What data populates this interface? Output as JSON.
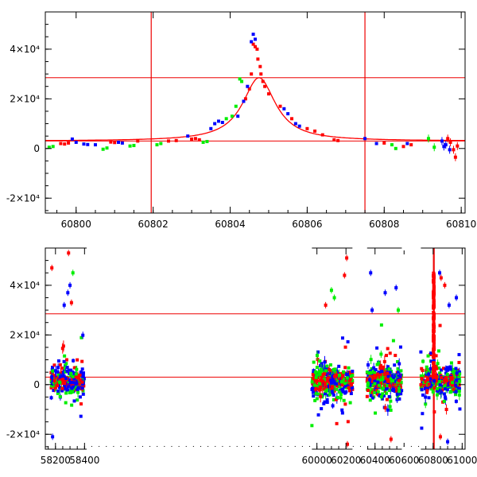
{
  "colors": {
    "red": "#ff0000",
    "green": "#00ee00",
    "blue": "#0000ff",
    "model": "#ee0000",
    "axis": "#000000"
  },
  "chart_data": [
    {
      "type": "scatter",
      "xlim": [
        60799.2,
        60810.1
      ],
      "ylim": [
        -26000,
        55000
      ],
      "xticks": [
        60800,
        60802,
        60804,
        60806,
        60808,
        60810
      ],
      "xtick_labels": [
        "60800",
        "60802",
        "60804",
        "60806",
        "60808",
        "60810"
      ],
      "yticks": [
        -20000,
        0,
        20000,
        40000
      ],
      "ytick_labels": [
        "-2×10⁴",
        "0",
        "2×10⁴",
        "4×10⁴"
      ],
      "hlines": [
        3000,
        28500
      ],
      "vlines": [
        60801.95,
        60807.5
      ],
      "model_curve": {
        "name": "",
        "color": "red",
        "baseline": 3000,
        "peak_x": 60804.75,
        "peak_y": 28500,
        "width": 0.52
      },
      "series": [
        {
          "color": "red",
          "x": [
            60799.6,
            60799.7,
            60799.8,
            60800.9,
            60801.0,
            60801.6,
            60802.4,
            60802.6,
            60803.0,
            60803.1,
            60803.2,
            60804.4,
            60804.5,
            60804.55,
            60804.6,
            60804.65,
            60804.7,
            60804.72,
            60804.78,
            60804.8,
            60804.85,
            60804.9,
            60805.0,
            60805.3,
            60805.6,
            60806.0,
            60806.2,
            60806.4,
            60806.7,
            60806.8,
            60808.0,
            60808.5,
            60808.7,
            60809.65,
            60809.72,
            60809.8,
            60809.85,
            60809.9
          ],
          "y": [
            2000,
            1800,
            2200,
            2600,
            2400,
            3000,
            3000,
            3200,
            3800,
            4000,
            3500,
            20000,
            24000,
            30000,
            42000,
            41000,
            40000,
            36000,
            33000,
            30000,
            27000,
            25000,
            22000,
            17000,
            12000,
            8000,
            7000,
            5500,
            3500,
            3200,
            2200,
            800,
            1500,
            4000,
            2500,
            -500,
            -3500,
            1000
          ]
        },
        {
          "color": "green",
          "x": [
            60799.3,
            60799.4,
            60800.7,
            60800.8,
            60801.4,
            60801.5,
            60802.1,
            60802.2,
            60803.3,
            60803.4,
            60803.9,
            60804.05,
            60804.15,
            60804.25,
            60804.3,
            60808.2,
            60808.3,
            60809.15,
            60809.3
          ],
          "y": [
            500,
            800,
            -300,
            200,
            1000,
            1200,
            1500,
            2000,
            2500,
            2800,
            12000,
            13000,
            17000,
            28000,
            27000,
            1500,
            0,
            4000,
            500
          ]
        },
        {
          "color": "blue",
          "x": [
            60799.9,
            60800.0,
            60800.2,
            60800.3,
            60800.5,
            60801.1,
            60801.2,
            60802.9,
            60803.5,
            60803.6,
            60803.7,
            60803.8,
            60804.2,
            60804.35,
            60804.45,
            60804.55,
            60804.6,
            60804.65,
            60805.4,
            60805.5,
            60805.7,
            60805.8,
            60807.5,
            60807.8,
            60808.6,
            60809.5,
            60809.55,
            60809.6,
            60809.7
          ],
          "y": [
            3800,
            2500,
            1800,
            1600,
            1500,
            2500,
            2200,
            5000,
            8000,
            10000,
            11000,
            10500,
            13000,
            19000,
            25000,
            43000,
            46000,
            44000,
            16000,
            14000,
            10000,
            9000,
            4000,
            2000,
            2000,
            3000,
            800,
            1500,
            -500
          ]
        }
      ]
    },
    {
      "type": "scatter",
      "xlim": [
        58130,
        61020
      ],
      "ylim": [
        -26000,
        55000
      ],
      "xticks": [
        58200,
        58400,
        60000,
        60200,
        60400,
        60600,
        60800,
        61000
      ],
      "xtick_labels": [
        "58200",
        "58400",
        "60000",
        "60200",
        "60400",
        "60600",
        "60800",
        "61000"
      ],
      "yticks": [
        -20000,
        0,
        20000,
        40000
      ],
      "ytick_labels": [
        "-2×10⁴",
        "0",
        "2×10⁴",
        "4×10⁴"
      ],
      "hlines": [
        3000,
        28500
      ],
      "vlines": [
        60801.95,
        60807.5
      ],
      "segments": [
        {
          "x0": 58160,
          "x1": 58420,
          "offset": 0
        },
        {
          "x0": 59960,
          "x1": 60250,
          "offset": -1630
        },
        {
          "x0": 60340,
          "x1": 60590,
          "offset": -1660
        },
        {
          "x0": 60710,
          "x1": 60990,
          "offset": -1660
        }
      ],
      "clusters": [
        {
          "x0": 58170,
          "x1": 58400,
          "n": 260
        },
        {
          "x0": 59965,
          "x1": 60245,
          "n": 420
        },
        {
          "x0": 60345,
          "x1": 60585,
          "n": 360
        },
        {
          "x0": 60715,
          "x1": 60985,
          "n": 330
        }
      ],
      "outliers": [
        {
          "x": 58175,
          "y": 47000,
          "color": "red"
        },
        {
          "x": 58290,
          "y": 53000,
          "color": "red"
        },
        {
          "x": 58285,
          "y": 37000,
          "color": "blue"
        },
        {
          "x": 58300,
          "y": 40000,
          "color": "blue"
        },
        {
          "x": 58320,
          "y": 45000,
          "color": "green"
        },
        {
          "x": 58260,
          "y": 32000,
          "color": "blue"
        },
        {
          "x": 58310,
          "y": 33000,
          "color": "red"
        },
        {
          "x": 58180,
          "y": -21000,
          "color": "blue"
        },
        {
          "x": 60205,
          "y": 51000,
          "color": "red"
        },
        {
          "x": 60190,
          "y": 44000,
          "color": "red"
        },
        {
          "x": 60100,
          "y": 38000,
          "color": "green"
        },
        {
          "x": 60120,
          "y": 35000,
          "color": "green"
        },
        {
          "x": 60060,
          "y": 32000,
          "color": "red"
        },
        {
          "x": 60210,
          "y": -24000,
          "color": "red"
        },
        {
          "x": 60370,
          "y": 45000,
          "color": "blue"
        },
        {
          "x": 60380,
          "y": 30000,
          "color": "blue"
        },
        {
          "x": 60470,
          "y": 37000,
          "color": "blue"
        },
        {
          "x": 60545,
          "y": 39000,
          "color": "blue"
        },
        {
          "x": 60560,
          "y": 30000,
          "color": "green"
        },
        {
          "x": 60510,
          "y": -22000,
          "color": "red"
        },
        {
          "x": 60845,
          "y": 45000,
          "color": "blue"
        },
        {
          "x": 60855,
          "y": 43000,
          "color": "red"
        },
        {
          "x": 60880,
          "y": 40000,
          "color": "red"
        },
        {
          "x": 60960,
          "y": 35000,
          "color": "blue"
        },
        {
          "x": 60910,
          "y": 32000,
          "color": "blue"
        },
        {
          "x": 60850,
          "y": -21000,
          "color": "red"
        },
        {
          "x": 60900,
          "y": -23000,
          "color": "blue"
        }
      ]
    }
  ]
}
